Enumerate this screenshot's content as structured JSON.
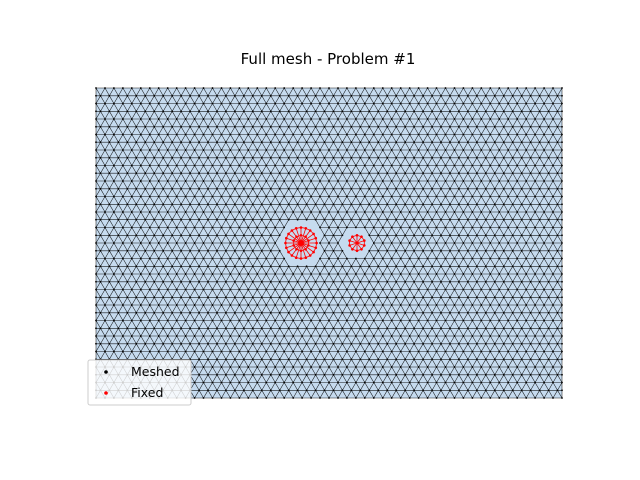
{
  "chart_data": {
    "type": "scatter",
    "title": "Full mesh - Problem #1",
    "xlabel": "",
    "ylabel": "",
    "axes_visible": false,
    "domain": {
      "xlim": [
        0,
        3
      ],
      "ylim": [
        0,
        2
      ]
    },
    "mesh": {
      "style": "triangulated",
      "face_color": "#c6dbef",
      "edge_color": "#000000"
    },
    "series": [
      {
        "name": "Meshed",
        "color": "#000000",
        "marker": "dot",
        "points": "regular triangular grid of nodes filling the rectangle, including boundary nodes"
      },
      {
        "name": "Fixed",
        "color": "#ff0000",
        "marker": "dot",
        "regions": [
          {
            "shape": "circle",
            "center": [
              1.32,
              1.0
            ],
            "radius": 0.1
          },
          {
            "shape": "circle",
            "center": [
              1.68,
              1.0
            ],
            "radius": 0.05
          }
        ]
      }
    ],
    "legend": {
      "placement": "lower-left",
      "entries": [
        "Meshed",
        "Fixed"
      ]
    }
  }
}
